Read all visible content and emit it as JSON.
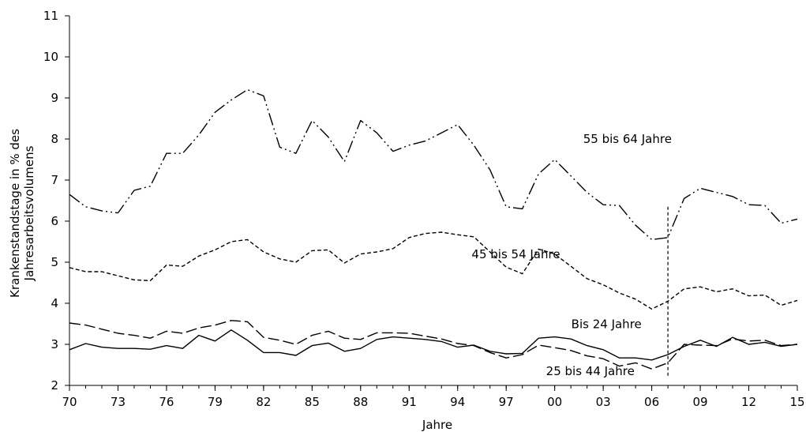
{
  "chart_data": {
    "type": "line",
    "xlabel": "Jahre",
    "ylabel_lines": [
      "Krankenstandstage in % des",
      "Jahresarbeitsvolumens"
    ],
    "ylim": [
      2,
      11
    ],
    "yticks": [
      2,
      3,
      4,
      5,
      6,
      7,
      8,
      9,
      10,
      11
    ],
    "xlim": [
      1970,
      2015
    ],
    "xtick_years": [
      1970,
      1973,
      1976,
      1979,
      1982,
      1985,
      1988,
      1991,
      1994,
      1997,
      2000,
      2003,
      2006,
      2009,
      2012,
      2015
    ],
    "xtick_labels": [
      "70",
      "73",
      "76",
      "79",
      "82",
      "85",
      "88",
      "91",
      "94",
      "97",
      "00",
      "03",
      "06",
      "09",
      "12",
      "15"
    ],
    "grid": false,
    "vertical_marker": {
      "x": 2007,
      "y_range": [
        2.2,
        6.35
      ]
    },
    "x": [
      1970,
      1971,
      1972,
      1973,
      1974,
      1975,
      1976,
      1977,
      1978,
      1979,
      1980,
      1981,
      1982,
      1983,
      1984,
      1985,
      1986,
      1987,
      1988,
      1989,
      1990,
      1991,
      1992,
      1993,
      1994,
      1995,
      1996,
      1997,
      1998,
      1999,
      2000,
      2001,
      2002,
      2003,
      2004,
      2005,
      2006,
      2007,
      2008,
      2009,
      2010,
      2011,
      2012,
      2013,
      2014,
      2015
    ],
    "series": [
      {
        "name": "55 bis 64 Jahre",
        "dash": "dash-dot-dot",
        "values": [
          6.65,
          6.35,
          6.25,
          6.2,
          6.75,
          6.85,
          7.65,
          7.65,
          8.1,
          8.65,
          8.95,
          9.2,
          9.05,
          7.8,
          7.65,
          8.45,
          8.05,
          7.45,
          8.45,
          8.15,
          7.7,
          7.85,
          7.95,
          8.15,
          8.35,
          7.85,
          7.25,
          6.35,
          6.3,
          7.15,
          7.5,
          7.1,
          6.7,
          6.4,
          6.38,
          5.9,
          5.55,
          5.6,
          6.55,
          6.8,
          6.7,
          6.6,
          6.4,
          6.38,
          5.95,
          6.05
        ]
      },
      {
        "name": "45 bis 54 Jahre",
        "dash": "short-dash",
        "values": [
          4.87,
          4.77,
          4.77,
          4.67,
          4.57,
          4.55,
          4.93,
          4.9,
          5.15,
          5.3,
          5.5,
          5.55,
          5.25,
          5.08,
          5.0,
          5.28,
          5.3,
          4.98,
          5.2,
          5.25,
          5.33,
          5.6,
          5.7,
          5.73,
          5.67,
          5.62,
          5.25,
          4.88,
          4.72,
          5.32,
          5.2,
          4.9,
          4.6,
          4.45,
          4.25,
          4.1,
          3.86,
          4.05,
          4.35,
          4.4,
          4.28,
          4.35,
          4.18,
          4.2,
          3.95,
          4.07
        ]
      },
      {
        "name": "Bis 24 Jahre",
        "dash": "solid",
        "values": [
          2.87,
          3.02,
          2.93,
          2.9,
          2.9,
          2.88,
          2.97,
          2.9,
          3.22,
          3.08,
          3.35,
          3.1,
          2.8,
          2.8,
          2.73,
          2.97,
          3.03,
          2.83,
          2.9,
          3.12,
          3.18,
          3.15,
          3.12,
          3.07,
          2.93,
          2.98,
          2.83,
          2.77,
          2.78,
          3.15,
          3.18,
          3.13,
          2.97,
          2.87,
          2.67,
          2.67,
          2.62,
          2.75,
          2.95,
          3.1,
          2.95,
          3.17,
          3.0,
          3.05,
          2.95,
          3.0
        ]
      },
      {
        "name": "25 bis 44 Jahre",
        "dash": "long-dash",
        "values": [
          3.52,
          3.47,
          3.37,
          3.27,
          3.22,
          3.15,
          3.32,
          3.27,
          3.4,
          3.47,
          3.58,
          3.55,
          3.17,
          3.1,
          3.0,
          3.22,
          3.32,
          3.15,
          3.12,
          3.28,
          3.28,
          3.27,
          3.2,
          3.13,
          3.02,
          2.97,
          2.8,
          2.67,
          2.75,
          2.98,
          2.92,
          2.85,
          2.72,
          2.65,
          2.47,
          2.55,
          2.4,
          2.55,
          3.0,
          2.98,
          2.97,
          3.13,
          3.08,
          3.1,
          2.97,
          3.0
        ]
      }
    ]
  }
}
